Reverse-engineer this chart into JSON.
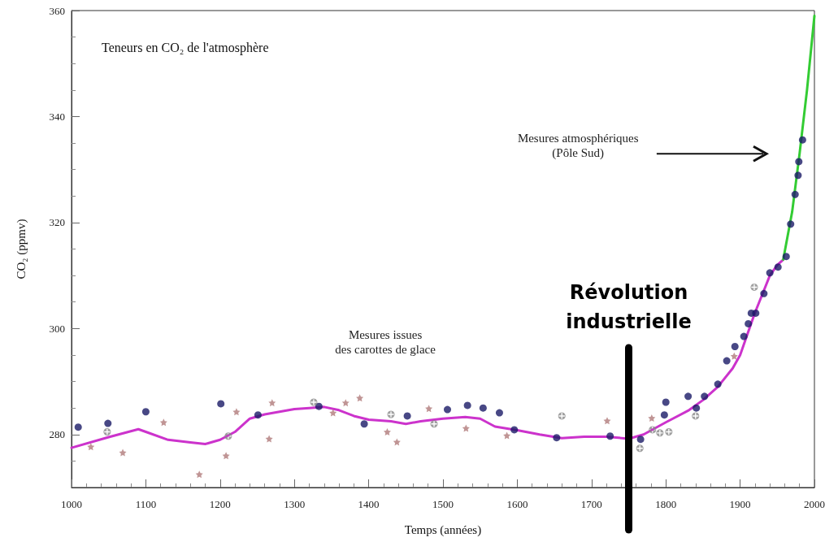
{
  "chart_data": {
    "type": "scatter",
    "title": "Teneurs en CO₂ de l'atmosphère",
    "xlabel": "Temps (années)",
    "ylabel": "CO₂ (ppmv)",
    "xlim": [
      1000,
      2000
    ],
    "xticks": [
      1000,
      1100,
      1200,
      1300,
      1400,
      1500,
      1600,
      1700,
      1800,
      1900,
      2000
    ],
    "ylim": [
      270,
      360
    ],
    "yticks": [
      280,
      300,
      320,
      340,
      360
    ],
    "grid": false,
    "annotations": [
      "Mesures issues\ndes carottes de glace",
      "Mesures atmosphériques\n(Pôle Sud)"
    ],
    "ref_lines": [
      {
        "axis": "x",
        "value": 1750,
        "label": "Révolution\nindustrielle",
        "color": "#000000"
      }
    ],
    "series": [
      {
        "type": "line",
        "color": "#cc33cc",
        "marker": "none",
        "line_style": "solid",
        "x": [
          1000,
          1050,
          1090,
          1100,
          1130,
          1160,
          1180,
          1200,
          1220,
          1240,
          1260,
          1280,
          1300,
          1320,
          1340,
          1360,
          1380,
          1400,
          1430,
          1450,
          1470,
          1500,
          1530,
          1550,
          1570,
          1600,
          1630,
          1660,
          1690,
          1720,
          1750,
          1770,
          1800,
          1830,
          1850,
          1870,
          1890,
          1900,
          1910,
          1920,
          1930,
          1940,
          1950,
          1958
        ],
        "values": [
          277.5,
          279.5,
          281,
          280.5,
          279,
          278.5,
          278.2,
          279,
          280.5,
          283,
          283.8,
          284.3,
          284.8,
          285,
          285.2,
          284.6,
          283.5,
          282.8,
          282.5,
          282,
          282.5,
          283,
          283.3,
          283,
          281.5,
          280.8,
          280,
          279.3,
          279.6,
          279.6,
          279.2,
          280,
          282.3,
          284.5,
          286.5,
          289,
          292.5,
          295,
          299,
          303,
          306.5,
          310,
          312,
          313
        ]
      },
      {
        "type": "line",
        "color": "#33cc33",
        "marker": "none",
        "line_style": "solid",
        "x": [
          1958,
          1970,
          1980,
          1990,
          2000
        ],
        "values": [
          313,
          322,
          333,
          345,
          359
        ]
      },
      {
        "color": "#1a1a66",
        "marker": "circle",
        "x": [
          1009,
          1049,
          1100,
          1201,
          1251,
          1333,
          1394,
          1452,
          1506,
          1533,
          1554,
          1576,
          1596,
          1653,
          1725,
          1766,
          1798,
          1800,
          1830,
          1841,
          1852,
          1870,
          1882,
          1893,
          1905,
          1911,
          1915,
          1921,
          1932,
          1940,
          1951,
          1962,
          1968,
          1974,
          1978,
          1979,
          1984
        ],
        "values": [
          281.4,
          282.1,
          284.3,
          285.8,
          283.7,
          285.3,
          282.0,
          283.5,
          284.7,
          285.5,
          285.0,
          284.1,
          280.9,
          279.4,
          279.7,
          279.1,
          283.7,
          286.1,
          287.2,
          285.0,
          287.2,
          289.5,
          293.9,
          296.6,
          298.5,
          300.9,
          302.9,
          302.9,
          306.6,
          310.5,
          311.6,
          313.6,
          319.7,
          325.3,
          328.9,
          331.5,
          335.6
        ]
      },
      {
        "color": "#b07a7a",
        "marker": "star",
        "x": [
          1026,
          1069,
          1124,
          1172,
          1208,
          1222,
          1266,
          1270,
          1352,
          1369,
          1388,
          1425,
          1438,
          1481,
          1531,
          1586,
          1721,
          1781,
          1892
        ],
        "values": [
          277.7,
          276.6,
          282.3,
          272.5,
          276.0,
          284.3,
          279.2,
          286.0,
          284.1,
          286.0,
          286.9,
          280.5,
          278.6,
          284.9,
          281.2,
          279.8,
          282.6,
          283.1,
          294.8
        ]
      },
      {
        "color": "#888888",
        "marker": "cross",
        "x": [
          1048,
          1211,
          1326,
          1430,
          1488,
          1660,
          1745,
          1765,
          1782,
          1792,
          1804,
          1840,
          1919
        ],
        "values": [
          280.5,
          279.7,
          286.1,
          283.8,
          282.0,
          283.5,
          null,
          277.4,
          280.9,
          280.3,
          280.5,
          283.5,
          307.8
        ]
      }
    ]
  }
}
